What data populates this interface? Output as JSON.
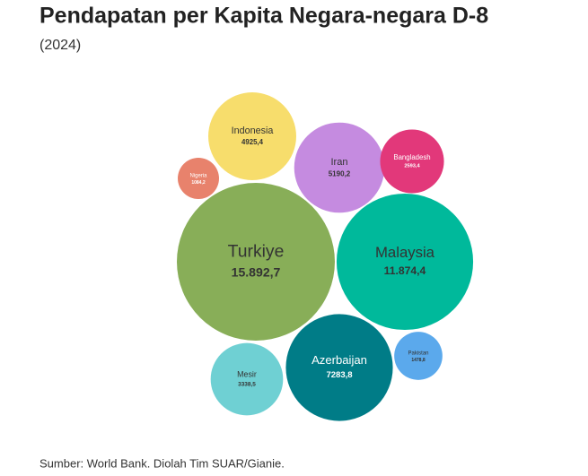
{
  "chart_data": {
    "type": "bubble",
    "title": "Pendapatan per Kapita Negara-negara D-8",
    "subtitle": "(2024)",
    "source": "Sumber: World Bank. Diolah Tim SUAR/Gianie.",
    "categories": [
      "Indonesia",
      "Iran",
      "Bangladesh",
      "Nigeria",
      "Turkiye",
      "Malaysia",
      "Pakistan",
      "Azerbaijan",
      "Mesir"
    ],
    "values": [
      4925.4,
      5190.2,
      2593.4,
      1084.2,
      15892.7,
      11874.4,
      1478.8,
      7283.8,
      3338.5
    ],
    "value_labels": [
      "4925,4",
      "5190,2",
      "2593,4",
      "1084,2",
      "15.892,7",
      "11.874,4",
      "1478,8",
      "7283,8",
      "3338,5"
    ],
    "colors": [
      "#f7dd6c",
      "#c58be0",
      "#e2387a",
      "#e8826c",
      "#88ae58",
      "#00b99b",
      "#5ba9ec",
      "#007c87",
      "#6fd0d3"
    ]
  }
}
